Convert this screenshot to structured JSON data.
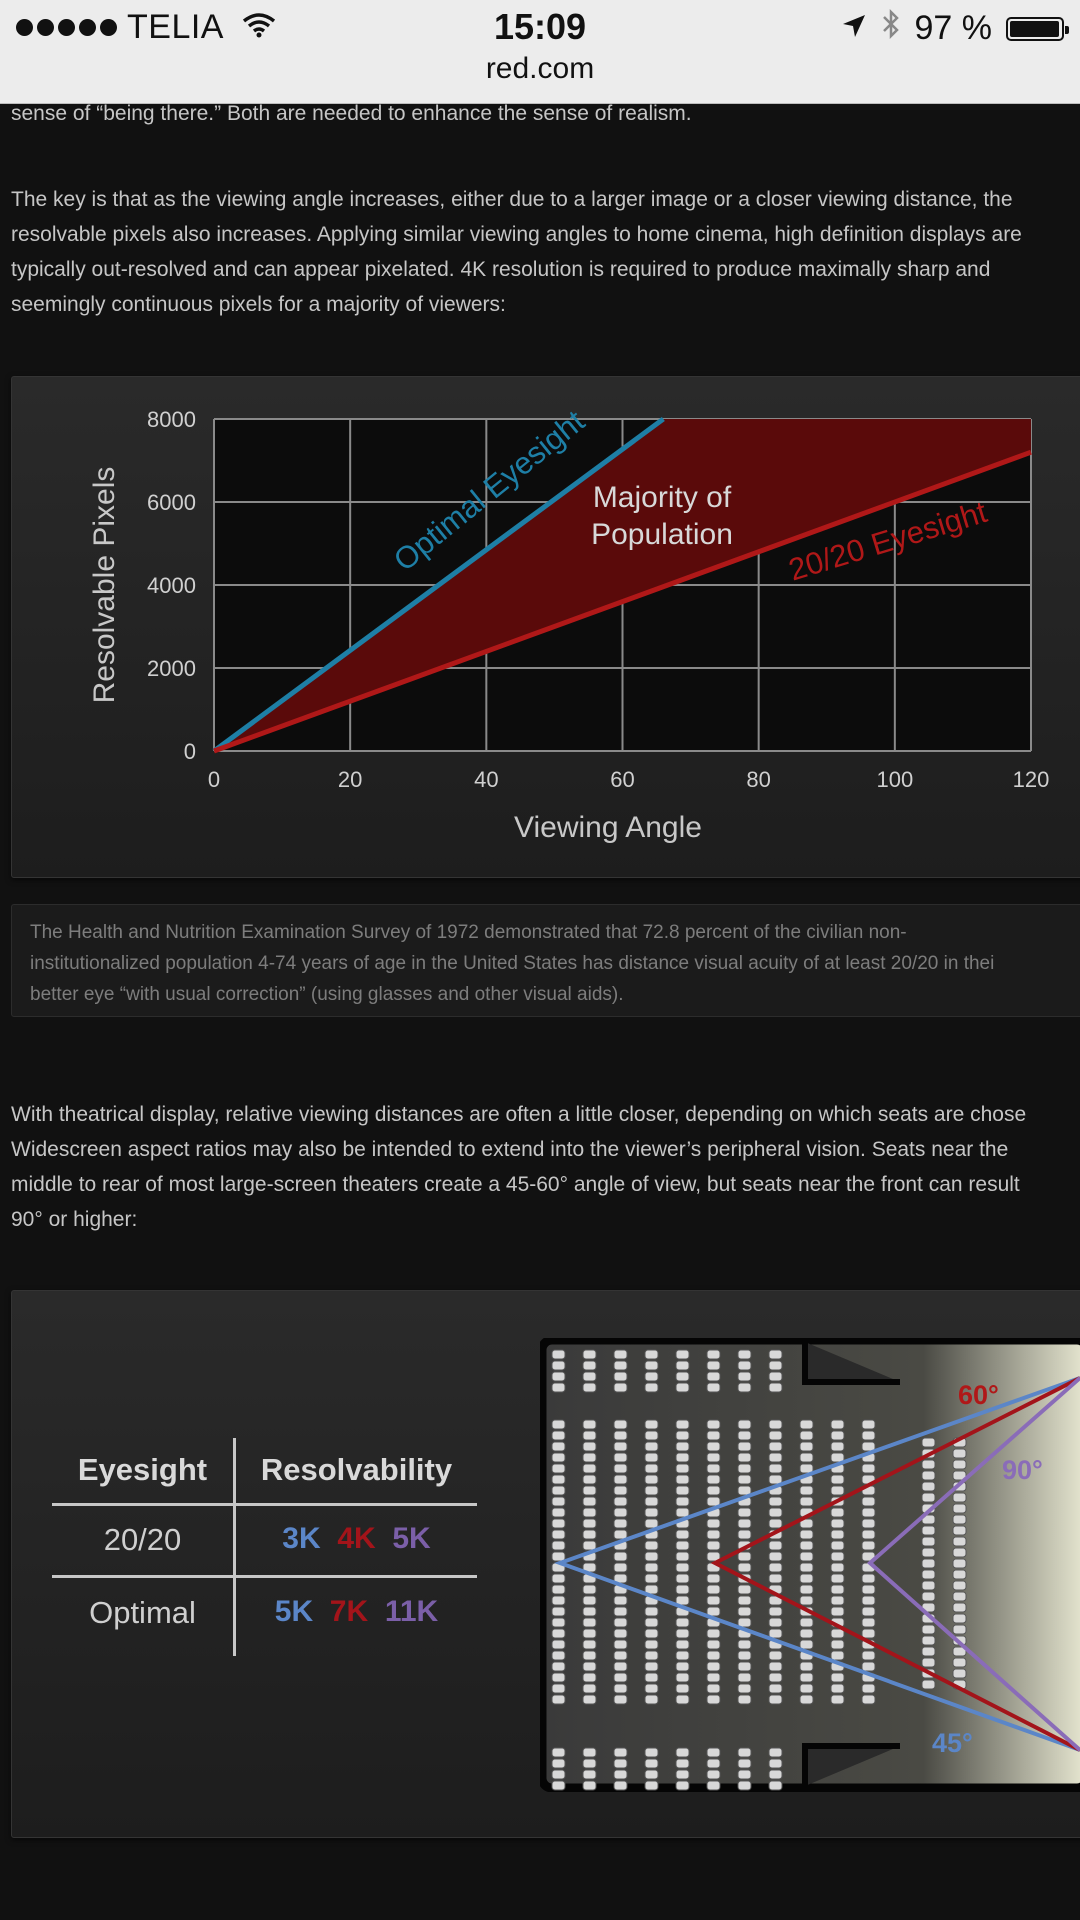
{
  "status_bar": {
    "carrier": "TELIA",
    "time": "15:09",
    "url": "red.com",
    "battery": "97 %",
    "battery_level": 0.97
  },
  "paragraphs": {
    "top_partial": "sense of “being there.” Both are needed to enhance the sense of realism.",
    "intro": [
      "The key is that as the viewing angle increases, either due to a larger image or a closer viewing distance, the",
      "resolvable pixels also increases. Applying similar viewing angles to home cinema, high definition displays are",
      "typically out-resolved and can appear pixelated. 4K resolution is required to produce maximally sharp and",
      "seemingly continuous pixels for a majority of viewers:"
    ],
    "theatrical": [
      "With theatrical display, relative viewing distances are often a little closer, depending on which seats are chose",
      "Widescreen aspect ratios may also be intended to extend into the viewer’s peripheral vision. Seats near the",
      "middle to rear of most large-screen theaters create a 45-60° angle of view, but seats near the front can result",
      "90° or higher:"
    ]
  },
  "chart_data": {
    "type": "line",
    "xlabel": "Viewing Angle",
    "ylabel": "Resolvable Pixels",
    "xlim": [
      0,
      120
    ],
    "ylim": [
      0,
      8000
    ],
    "x_ticks": [
      "0",
      "20",
      "40",
      "60",
      "80",
      "100",
      "120"
    ],
    "y_ticks": [
      "0",
      "2000",
      "4000",
      "6000",
      "8000"
    ],
    "grid": true,
    "series": [
      {
        "name": "Optimal Eyesight",
        "color": "#1e7fa6",
        "x": [
          0,
          66
        ],
        "y": [
          0,
          8000
        ]
      },
      {
        "name": "20/20 Eyesight",
        "color": "#b01818",
        "x": [
          0,
          120
        ],
        "y": [
          0,
          7200
        ]
      }
    ],
    "region_label": [
      "Majority of",
      "Population"
    ],
    "region_color": "#5a0a0a"
  },
  "note": [
    "The Health and Nutrition Examination Survey of 1972 demonstrated that 72.8 percent of the civilian non-",
    "institutionalized population 4-74 years of age in the United States has distance visual acuity of at least 20/20 in thei",
    "better eye “with usual correction” (using glasses and other visual aids)."
  ],
  "eyesight_table": {
    "headers": [
      "Eyesight",
      "Resolvability"
    ],
    "rows": [
      {
        "label": "20/20",
        "values": [
          "3K",
          "4K",
          "5K"
        ]
      },
      {
        "label": "Optimal",
        "values": [
          "5K",
          "7K",
          "11K"
        ]
      }
    ],
    "value_colors": [
      "#5b86c8",
      "#a3141a",
      "#7b5fa8"
    ]
  },
  "theater": {
    "angle_labels": [
      "60°",
      "90°",
      "45°"
    ],
    "line_colors": {
      "45": "#5b86c8",
      "60": "#a3141a",
      "90": "#8a6cb8"
    }
  }
}
